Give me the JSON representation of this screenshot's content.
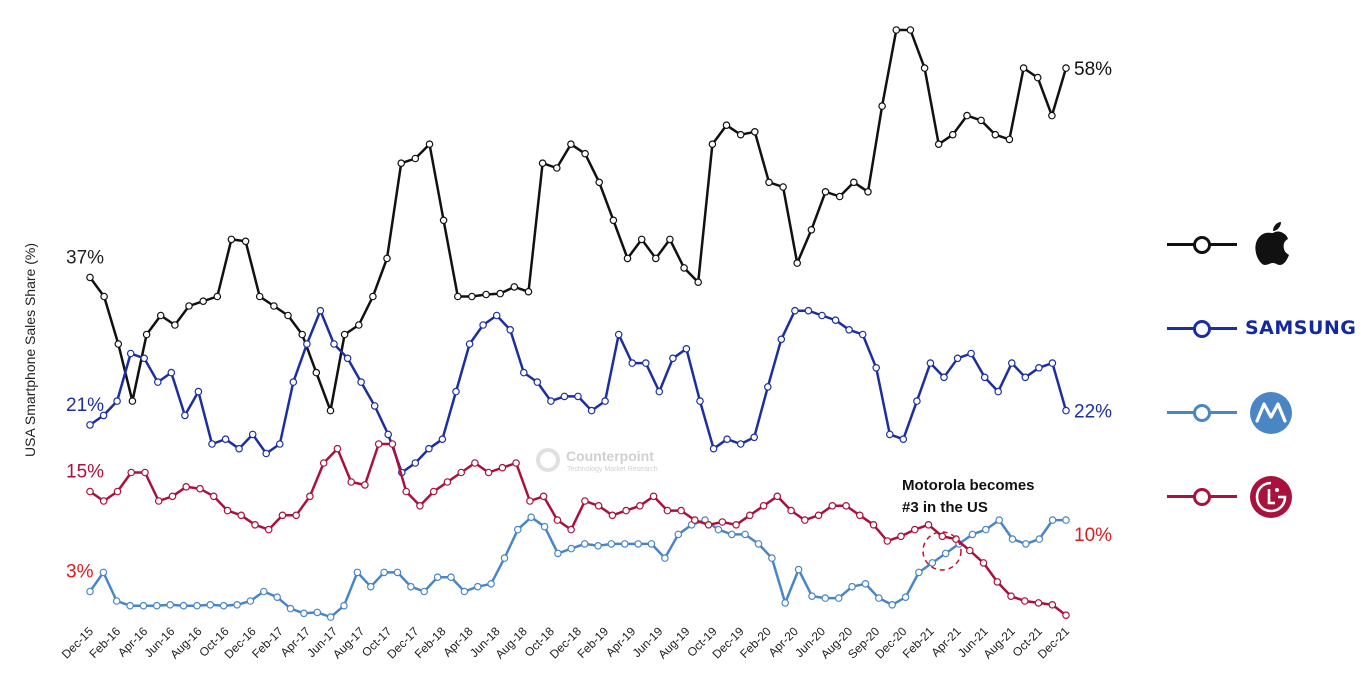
{
  "chart_data": {
    "type": "line",
    "ylabel": "USA  Smartphone Sales Share (%)",
    "xlabel": "",
    "x_tick_labels": [
      "Dec-15",
      "Feb-16",
      "Apr-16",
      "Jun-16",
      "Aug-16",
      "Oct-16",
      "Dec-16",
      "Feb-17",
      "Apr-17",
      "Jun-17",
      "Aug-17",
      "Oct-17",
      "Dec-17",
      "Feb-18",
      "Apr-18",
      "Jun-18",
      "Aug-18",
      "Oct-18",
      "Dec-18",
      "Feb-19",
      "Apr-19",
      "Jun-19",
      "Aug-19",
      "Oct-19",
      "Dec-19",
      "Feb-20",
      "Apr-20",
      "Jun-20",
      "Aug-20",
      "Sep-20",
      "Dec-20",
      "Feb-21",
      "Apr-21",
      "Jun-21",
      "Aug-21",
      "Oct-21",
      "Dec-21"
    ],
    "ylim": [
      0,
      62
    ],
    "grid": false,
    "legend_position": "right",
    "series": [
      {
        "brand": "Apple",
        "color": "#111111",
        "start_label": "37%",
        "end_label": "58%",
        "values": [
          36,
          34,
          29,
          23,
          30,
          32,
          31,
          33,
          33.5,
          34,
          40,
          39.8,
          34,
          33,
          32,
          30,
          26,
          22,
          30,
          31,
          34,
          38,
          48,
          48.5,
          50,
          42,
          34,
          34,
          34.2,
          34.3,
          35,
          34.5,
          48,
          47.5,
          50,
          49,
          46,
          42,
          38,
          40,
          38,
          40,
          37,
          35.5,
          50,
          52,
          51,
          51.3,
          46,
          45.5,
          37.5,
          41,
          45,
          44.5,
          46,
          45,
          54,
          62,
          62,
          58,
          50,
          51,
          53,
          52.5,
          51,
          50.5,
          58,
          57,
          53,
          58
        ]
      },
      {
        "brand": "Samsung",
        "color": "#1c2fa0",
        "start_label": "21%",
        "end_label": "22%",
        "values": [
          20.5,
          21.5,
          23,
          28,
          27.5,
          25,
          26,
          21.5,
          24,
          18.5,
          19,
          18,
          19.5,
          17.5,
          18.5,
          25,
          29,
          32.5,
          29,
          27.5,
          25,
          22.5,
          19.5,
          15.5,
          16.5,
          18,
          19,
          24,
          29,
          31,
          32,
          30.5,
          26,
          25,
          23,
          23.5,
          23.5,
          22,
          23,
          30,
          27,
          27,
          24,
          27.5,
          28.5,
          23,
          18,
          19,
          18.5,
          19.2,
          24.5,
          29.5,
          32.5,
          32.5,
          32,
          31.5,
          30.5,
          30,
          26.5,
          19.5,
          19,
          23,
          27,
          25.5,
          27.5,
          28,
          25.5,
          24,
          27,
          25.5,
          26.5,
          27,
          22
        ]
      },
      {
        "brand": "Motorola",
        "color": "#4a86c5",
        "start_label": "3%",
        "end_label": "",
        "values": [
          3,
          5,
          2,
          1.5,
          1.5,
          1.5,
          1.6,
          1.5,
          1.5,
          1.6,
          1.5,
          1.6,
          2,
          3,
          2.4,
          1.2,
          0.7,
          0.8,
          0.3,
          1.5,
          5,
          3.5,
          5,
          5,
          3.5,
          3,
          4.5,
          4.5,
          3,
          3.5,
          3.8,
          6.5,
          9.5,
          10.8,
          9.8,
          7,
          7.5,
          8,
          7.8,
          8,
          8,
          8,
          8,
          6.5,
          9,
          10,
          10.5,
          9.5,
          9,
          9,
          8,
          6.5,
          1.8,
          5.3,
          2.5,
          2.3,
          2.3,
          3.5,
          3.8,
          2.3,
          1.6,
          2.4,
          5,
          6,
          7,
          8,
          9,
          9.5,
          10.5,
          8.5,
          8,
          8.5,
          10.5,
          10.5
        ]
      },
      {
        "brand": "LG",
        "color": "#a8123c",
        "start_label": "15%",
        "end_label": "10%",
        "values": [
          13.5,
          12.5,
          13.5,
          15.5,
          15.5,
          12.5,
          13,
          14,
          13.8,
          13,
          11.5,
          11,
          10,
          9.5,
          11,
          11,
          13,
          16.5,
          18,
          14.5,
          14.2,
          18.5,
          18.5,
          13.5,
          12,
          13.5,
          14.5,
          15.5,
          16.5,
          15.5,
          16,
          16.5,
          12.5,
          13,
          10.5,
          9.5,
          12.5,
          12,
          11,
          11.5,
          12,
          13,
          11.5,
          11.5,
          10.5,
          10,
          10.3,
          10,
          11,
          12,
          13,
          11.5,
          10.5,
          11,
          12,
          12,
          11,
          10,
          8.3,
          8.8,
          9.5,
          10,
          8.8,
          8.5,
          7.3,
          6,
          4,
          2.5,
          2,
          1.8,
          1.6,
          0.5
        ]
      }
    ],
    "annotations": [
      {
        "text_line1": "Motorola becomes",
        "text_line2": "#3 in the US"
      }
    ],
    "watermark": {
      "title": "Counterpoint",
      "subtitle": "Technology Market Research"
    }
  },
  "legend": [
    {
      "brand": "Apple",
      "icon": "apple-logo-icon",
      "color": "#111111"
    },
    {
      "brand": "Samsung",
      "icon": "samsung-wordmark",
      "wordmark": "SAMSUNG",
      "color": "#1c2fa0"
    },
    {
      "brand": "Motorola",
      "icon": "motorola-logo-icon",
      "color": "#4a86c5"
    },
    {
      "brand": "LG",
      "icon": "lg-logo-icon",
      "color": "#a8123c"
    }
  ]
}
